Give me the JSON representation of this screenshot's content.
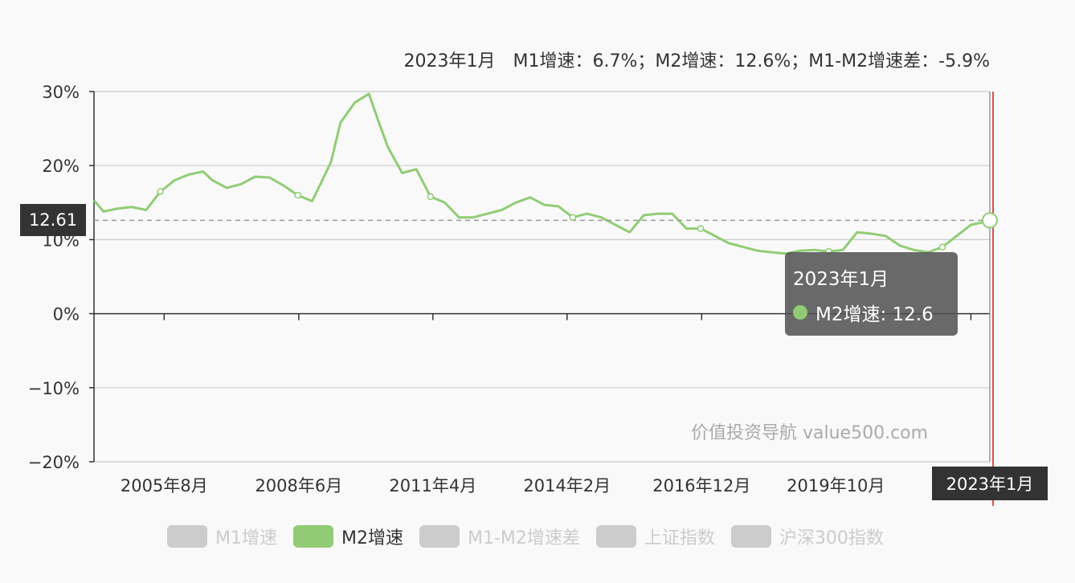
{
  "header": {
    "text": "2023年1月　M1增速：6.7%；M2增速：12.6%；M1-M2增速差：-5.9%"
  },
  "tooltip": {
    "title": "2023年1月",
    "series_label": "M2增速: 12.6"
  },
  "axis_pointer": {
    "y_value": "12.61",
    "x_value": "2023年1月"
  },
  "watermark": "价值投资导航 value500.com",
  "colors": {
    "m2_line": "#91cc75",
    "marker_line": "#d9534f",
    "tooltip_bg": "#505050",
    "inactive": "#cccccc"
  },
  "legend": [
    {
      "label": "M1增速",
      "active": false
    },
    {
      "label": "M2增速",
      "active": true
    },
    {
      "label": "M1-M2增速差",
      "active": false
    },
    {
      "label": "上证指数",
      "active": false
    },
    {
      "label": "沪深300指数",
      "active": false
    }
  ],
  "chart_data": {
    "type": "line",
    "ylim": [
      -20,
      30
    ],
    "y_ticks": [
      "30%",
      "20%",
      "10%",
      "0%",
      "−10%",
      "−20%"
    ],
    "y_tick_values": [
      30,
      20,
      10,
      0,
      -10,
      -20
    ],
    "x_range": [
      2004.1,
      2023.0
    ],
    "x_tick_labels": [
      "2005年8月",
      "2008年6月",
      "2011年4月",
      "2014年2月",
      "2016年12月",
      "2019年10月"
    ],
    "x_tick_values": [
      2005.58,
      2008.42,
      2011.25,
      2014.08,
      2016.92,
      2019.75
    ],
    "series": [
      {
        "name": "M2增速",
        "x": [
          2004.1,
          2004.3,
          2004.6,
          2004.9,
          2005.2,
          2005.5,
          2005.8,
          2006.1,
          2006.4,
          2006.6,
          2006.9,
          2007.2,
          2007.5,
          2007.8,
          2008.1,
          2008.4,
          2008.7,
          2008.9,
          2009.1,
          2009.3,
          2009.6,
          2009.9,
          2010.1,
          2010.3,
          2010.6,
          2010.9,
          2011.2,
          2011.5,
          2011.8,
          2012.1,
          2012.4,
          2012.7,
          2013.0,
          2013.3,
          2013.6,
          2013.9,
          2014.2,
          2014.5,
          2014.8,
          2015.1,
          2015.4,
          2015.7,
          2016.0,
          2016.3,
          2016.6,
          2016.9,
          2017.2,
          2017.5,
          2017.8,
          2018.1,
          2018.4,
          2018.7,
          2019.0,
          2019.3,
          2019.6,
          2019.9,
          2020.2,
          2020.5,
          2020.8,
          2021.1,
          2021.4,
          2021.7,
          2022.0,
          2022.3,
          2022.6,
          2022.9,
          2023.0
        ],
        "values": [
          15.3,
          13.8,
          14.2,
          14.4,
          14.0,
          16.5,
          18.0,
          18.8,
          19.2,
          18.0,
          17.0,
          17.5,
          18.5,
          18.4,
          17.3,
          16.0,
          15.2,
          17.8,
          20.5,
          25.8,
          28.5,
          29.7,
          26.0,
          22.5,
          19.0,
          19.5,
          15.8,
          15.0,
          13.0,
          13.0,
          13.5,
          14.0,
          15.0,
          15.7,
          14.7,
          14.5,
          13.0,
          13.5,
          13.0,
          12.0,
          11.0,
          13.3,
          13.5,
          13.5,
          11.5,
          11.5,
          10.5,
          9.5,
          9.0,
          8.5,
          8.3,
          8.1,
          8.5,
          8.6,
          8.4,
          8.6,
          11.0,
          10.8,
          10.5,
          9.2,
          8.6,
          8.3,
          9.0,
          10.5,
          12.0,
          12.4,
          12.6
        ]
      }
    ]
  }
}
